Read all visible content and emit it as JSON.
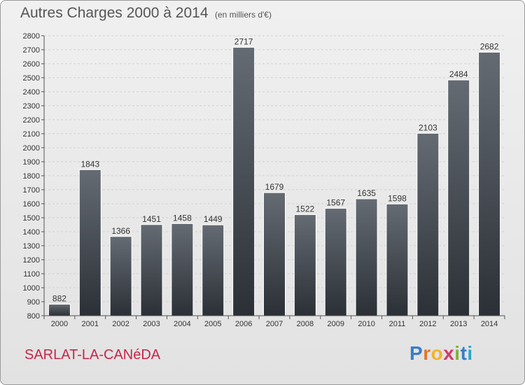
{
  "header": {
    "title": "Autres Charges 2000 à 2014",
    "subtitle": "(en milliers d'€)"
  },
  "footer": {
    "commune": "SARLAT-LA-CANéDA",
    "brand_letters": [
      "P",
      "r",
      "o",
      "x",
      "i",
      "t",
      "i"
    ],
    "brand_colors": [
      "#3a7cc9",
      "#e0782a",
      "#f2b32a",
      "#d43a6a",
      "#7ab33a",
      "#3a7cc9",
      "#2aa6c9"
    ]
  },
  "colors": {
    "bar_top": "#656b73",
    "bar_bottom": "#2b3036",
    "grid": "#d0d0d0",
    "axis": "#555555",
    "commune": "#c8244a"
  },
  "chart_data": {
    "type": "bar",
    "categories": [
      "2000",
      "2001",
      "2002",
      "2003",
      "2004",
      "2005",
      "2006",
      "2007",
      "2008",
      "2009",
      "2010",
      "2011",
      "2012",
      "2013",
      "2014"
    ],
    "values": [
      882,
      1843,
      1366,
      1451,
      1458,
      1449,
      2717,
      1679,
      1522,
      1567,
      1635,
      1598,
      2103,
      2484,
      2682
    ],
    "ylim": [
      800,
      2800
    ],
    "yticks": [
      800,
      900,
      1000,
      1100,
      1200,
      1300,
      1400,
      1500,
      1600,
      1700,
      1800,
      1900,
      2000,
      2100,
      2200,
      2300,
      2400,
      2500,
      2600,
      2700,
      2800
    ],
    "grid": true,
    "xlabel": "",
    "ylabel": ""
  }
}
